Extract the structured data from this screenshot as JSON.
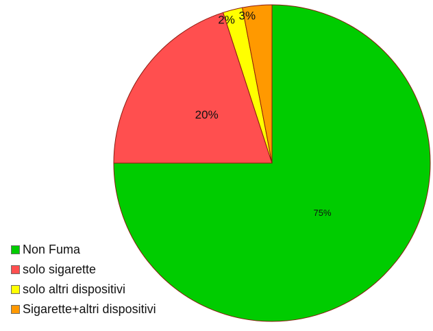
{
  "chart_data": {
    "type": "pie",
    "title": "",
    "slices": [
      {
        "label": "Non Fuma",
        "value": 75,
        "display": "75%",
        "color": "#00cc00"
      },
      {
        "label": "solo sigarette",
        "value": 20,
        "display": "20%",
        "color": "#ff4f4f"
      },
      {
        "label": "solo altri dispositivi",
        "value": 2,
        "display": "2%",
        "color": "#ffff00"
      },
      {
        "label": "Sigarette+altri dispositivi",
        "value": 3,
        "display": "3%",
        "color": "#ff9900"
      }
    ],
    "legend_position": "bottom-left",
    "start": "top, clockwise",
    "edge_color": "#8b1a0e"
  }
}
